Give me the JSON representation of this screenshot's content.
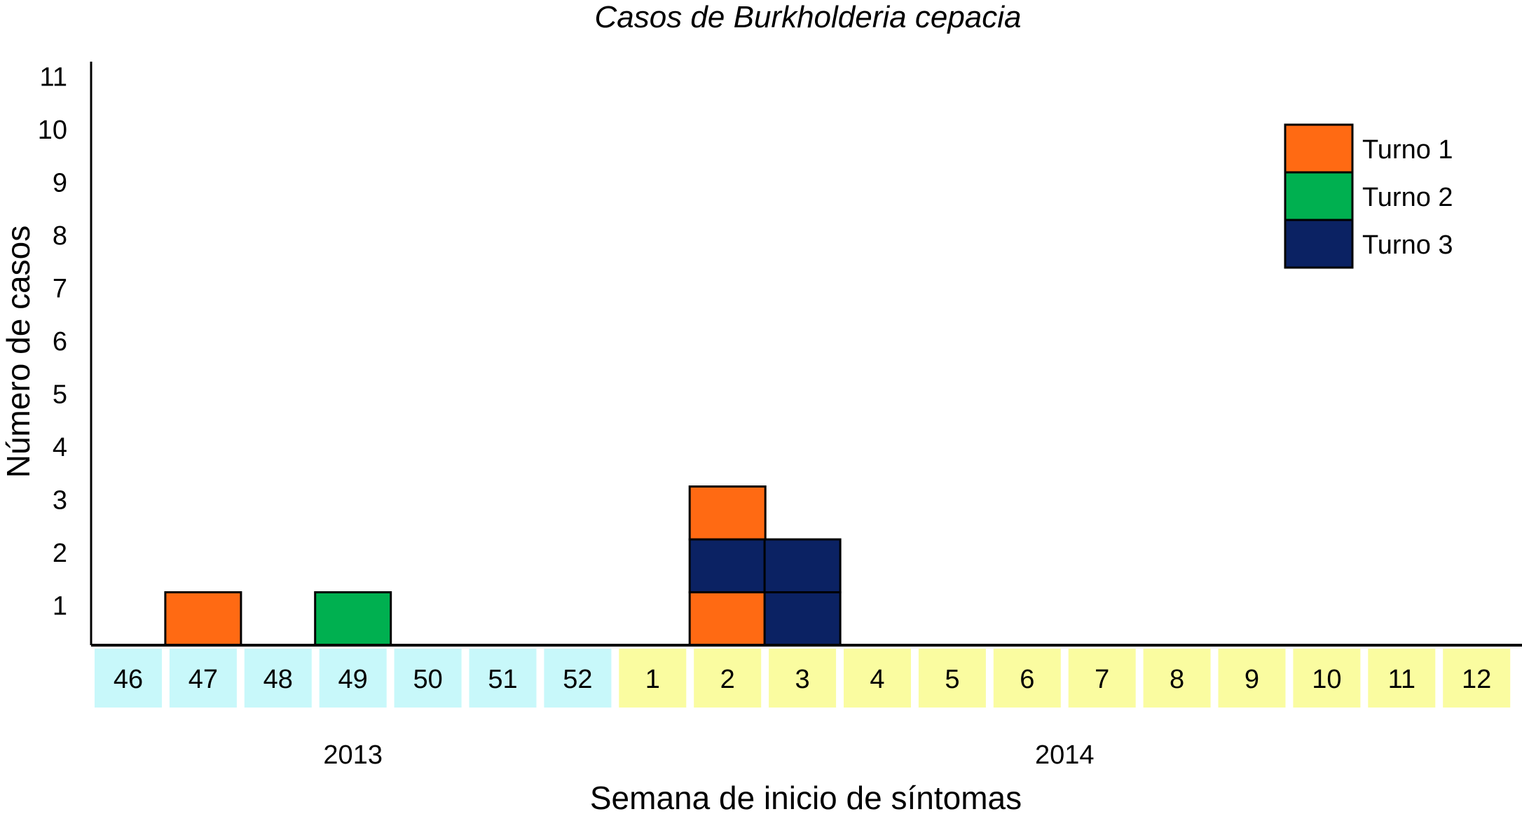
{
  "chart_data": {
    "type": "bar",
    "title": "Casos de Burkholderia cepacia",
    "xlabel": "Semana de inicio de síntomas",
    "ylabel": "Número de casos",
    "yticks": [
      "1",
      "2",
      "3",
      "4",
      "5",
      "6",
      "7",
      "8",
      "9",
      "10",
      "11"
    ],
    "ylim": [
      0,
      11
    ],
    "grid": false,
    "legend_position": "top-right",
    "years": [
      {
        "label": "2013",
        "color": "#c8f8fa",
        "weeks": [
          "46",
          "47",
          "48",
          "49",
          "50",
          "51",
          "52"
        ]
      },
      {
        "label": "2014",
        "color": "#fafca0",
        "weeks": [
          "1",
          "2",
          "3",
          "4",
          "5",
          "6",
          "7",
          "8",
          "9",
          "10",
          "11",
          "12"
        ]
      }
    ],
    "series": [
      {
        "name": "Turno 1",
        "color": "#ff6a13"
      },
      {
        "name": "Turno 2",
        "color": "#00b050"
      },
      {
        "name": "Turno 3",
        "color": "#0b2263"
      }
    ],
    "cases": [
      {
        "week": "47",
        "stack": [
          "Turno 1"
        ]
      },
      {
        "week": "49",
        "stack": [
          "Turno 2"
        ]
      },
      {
        "week": "2",
        "stack": [
          "Turno 1",
          "Turno 3",
          "Turno 1"
        ]
      },
      {
        "week": "3",
        "stack": [
          "Turno 3",
          "Turno 3"
        ]
      }
    ]
  }
}
